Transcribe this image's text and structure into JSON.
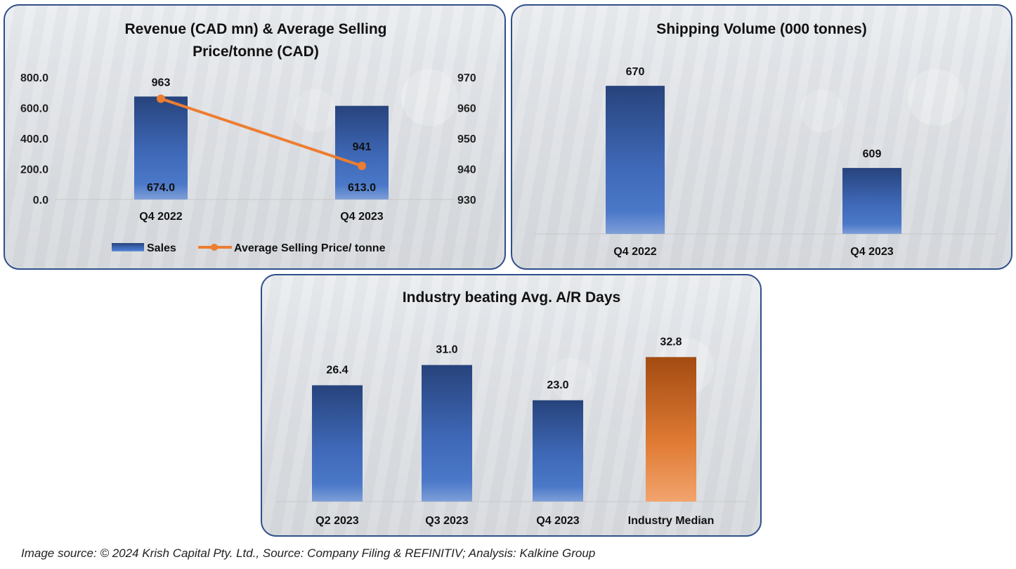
{
  "chart_data": [
    {
      "type": "bar+line",
      "title": "Revenue (CAD mn) & Average Selling Price/tonne (CAD)",
      "title_lines": [
        "Revenue (CAD mn) & Average Selling",
        "Price/tonne (CAD)"
      ],
      "categories": [
        "Q4 2022",
        "Q4 2023"
      ],
      "series": [
        {
          "name": "Sales",
          "type": "bar",
          "axis": "left",
          "values": [
            674.0,
            613.0
          ],
          "labels": [
            "674.0",
            "613.0"
          ],
          "color": "#3a64b0"
        },
        {
          "name": "Average Selling Price/ tonne",
          "type": "line",
          "axis": "right",
          "values": [
            963,
            941
          ],
          "labels": [
            "963",
            "941"
          ],
          "color": "#ed7d31"
        }
      ],
      "y_left": {
        "min": 0,
        "max": 800,
        "ticks": [
          "0.0",
          "200.0",
          "400.0",
          "600.0",
          "800.0"
        ]
      },
      "y_right": {
        "min": 930,
        "max": 970,
        "ticks": [
          "930",
          "940",
          "950",
          "960",
          "970"
        ]
      },
      "legend": {
        "position": "bottom",
        "entries": [
          "Sales",
          "Average Selling Price/ tonne"
        ]
      },
      "grid": false
    },
    {
      "type": "bar",
      "title": "Shipping Volume (000 tonnes)",
      "categories": [
        "Q4 2022",
        "Q4 2023"
      ],
      "values": [
        670,
        609
      ],
      "labels": [
        "670",
        "609"
      ],
      "ylim": [
        560,
        680
      ],
      "color": "#3a64b0",
      "grid": false
    },
    {
      "type": "bar",
      "title": "Industry beating Avg. A/R Days",
      "categories": [
        "Q2 2023",
        "Q3 2023",
        "Q4 2023",
        "Industry Median"
      ],
      "values": [
        26.4,
        31.0,
        23.0,
        32.8
      ],
      "labels": [
        "26.4",
        "31.0",
        "23.0",
        "32.8"
      ],
      "colors": [
        "#3a64b0",
        "#3a64b0",
        "#3a64b0",
        "#d06a25"
      ],
      "ylim": [
        0,
        37
      ],
      "grid": false
    }
  ],
  "footer": "Image source: © 2024 Krish Capital Pty. Ltd., Source: Company Filing & REFINITIV; Analysis: Kalkine Group"
}
